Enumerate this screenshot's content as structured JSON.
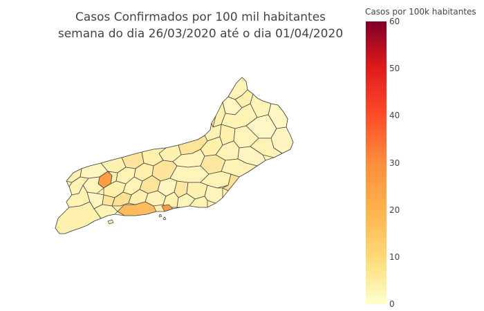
{
  "title_line1": "Casos Confirmados por 100 mil habitantes",
  "title_line2": "semana do dia 26/03/2020 até o dia 01/04/2020",
  "colorbar": {
    "title": "Casos por 100k habitantes",
    "min": 0,
    "max": 60,
    "ticks": [
      "0",
      "10",
      "20",
      "30",
      "40",
      "50",
      "60"
    ],
    "colorscale": [
      "#ffffcc",
      "#fed976",
      "#feb24c",
      "#fd8d3c",
      "#fc4e2a",
      "#e31a1c",
      "#800026"
    ]
  },
  "map": {
    "region": "Rio de Janeiro (RJ) municipalities",
    "border_color": "#444444",
    "highlighted_values": {
      "low": 3,
      "mid_yellow": 10,
      "light_orange": 17,
      "orange": 22,
      "dark_orange": 27
    }
  }
}
